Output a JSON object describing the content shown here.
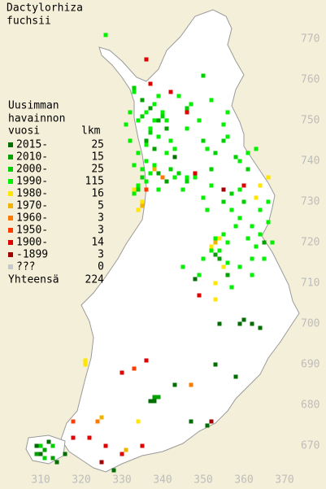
{
  "map": {
    "title_lines": [
      "Dactylorhiza",
      "fuchsii"
    ],
    "legend_header": [
      "Uusimman",
      "havainnon",
      "vuosi"
    ],
    "count_header": "lkm",
    "total_label": "Yhteensä",
    "total": 224,
    "yticks": [
      670,
      680,
      690,
      700,
      710,
      720,
      730,
      740,
      750,
      760,
      770
    ],
    "xticks": [
      310,
      320,
      330,
      340,
      350,
      360,
      370
    ],
    "periods": [
      {
        "label": "2015-",
        "count": 25,
        "color": "#006e00",
        "squares": [
          [
            343,
            741
          ],
          [
            348,
            711
          ],
          [
            354,
            700
          ],
          [
            359,
            700
          ],
          [
            360,
            701
          ],
          [
            362,
            700
          ],
          [
            364,
            699
          ],
          [
            353,
            690
          ],
          [
            358,
            687
          ],
          [
            343,
            685
          ],
          [
            338,
            681
          ],
          [
            337,
            681
          ],
          [
            347,
            676
          ],
          [
            351,
            675
          ],
          [
            331,
            669
          ],
          [
            328,
            664
          ],
          [
            309,
            670
          ],
          [
            310,
            668
          ],
          [
            312,
            671
          ],
          [
            316,
            668
          ],
          [
            314,
            666
          ]
        ]
      },
      {
        "label": "2010-",
        "count": 15,
        "color": "#00a000",
        "squares": [
          [
            335,
            755
          ],
          [
            337,
            753
          ],
          [
            339,
            750
          ],
          [
            341,
            748
          ],
          [
            336,
            745
          ],
          [
            338,
            743
          ],
          [
            339,
            737
          ],
          [
            341,
            735
          ],
          [
            353,
            717
          ],
          [
            354,
            716
          ],
          [
            356,
            712
          ],
          [
            338,
            682
          ],
          [
            339,
            682
          ],
          [
            309,
            668
          ],
          [
            311,
            669
          ],
          [
            313,
            667
          ],
          [
            365,
            720
          ]
        ]
      },
      {
        "label": "2000-",
        "count": 25,
        "color": "#00d000",
        "squares": [
          [
            333,
            758
          ],
          [
            335,
            751
          ],
          [
            340,
            751
          ],
          [
            337,
            747
          ],
          [
            342,
            738
          ],
          [
            335,
            736
          ],
          [
            334,
            733
          ],
          [
            344,
            737
          ],
          [
            346,
            735
          ],
          [
            353,
            742
          ],
          [
            355,
            745
          ],
          [
            358,
            741
          ],
          [
            361,
            738
          ],
          [
            352,
            738
          ],
          [
            350,
            745
          ],
          [
            346,
            753
          ],
          [
            350,
            761
          ],
          [
            355,
            730
          ],
          [
            357,
            732
          ],
          [
            360,
            730
          ],
          [
            310,
            670
          ],
          [
            311,
            667
          ],
          [
            313,
            670
          ]
        ]
      },
      {
        "label": "1990-",
        "count": 115,
        "color": "#00f000",
        "squares": [
          [
            326,
            771
          ],
          [
            333,
            757
          ],
          [
            334,
            750
          ],
          [
            336,
            752
          ],
          [
            338,
            754
          ],
          [
            339,
            756
          ],
          [
            340,
            752
          ],
          [
            341,
            750
          ],
          [
            338,
            750
          ],
          [
            337,
            748
          ],
          [
            336,
            744
          ],
          [
            332,
            752
          ],
          [
            332,
            745
          ],
          [
            331,
            749
          ],
          [
            334,
            742
          ],
          [
            339,
            746
          ],
          [
            342,
            745
          ],
          [
            343,
            743
          ],
          [
            341,
            742
          ],
          [
            338,
            739
          ],
          [
            336,
            740
          ],
          [
            333,
            739
          ],
          [
            335,
            738
          ],
          [
            337,
            737
          ],
          [
            340,
            736
          ],
          [
            343,
            736
          ],
          [
            346,
            736
          ],
          [
            348,
            736
          ],
          [
            345,
            733
          ],
          [
            339,
            733
          ],
          [
            336,
            733
          ],
          [
            333,
            732
          ],
          [
            344,
            756
          ],
          [
            347,
            754
          ],
          [
            349,
            750
          ],
          [
            346,
            748
          ],
          [
            352,
            755
          ],
          [
            356,
            752
          ],
          [
            355,
            749
          ],
          [
            356,
            746
          ],
          [
            351,
            743
          ],
          [
            359,
            740
          ],
          [
            361,
            742
          ],
          [
            363,
            743
          ],
          [
            357,
            728
          ],
          [
            359,
            726
          ],
          [
            362,
            724
          ],
          [
            364,
            722
          ],
          [
            366,
            730
          ],
          [
            366,
            725
          ],
          [
            364,
            728
          ],
          [
            359,
            733
          ],
          [
            358,
            724
          ],
          [
            356,
            720
          ],
          [
            354,
            718
          ],
          [
            356,
            715
          ],
          [
            359,
            714
          ],
          [
            362,
            716
          ],
          [
            363,
            719
          ],
          [
            361,
            721
          ],
          [
            355,
            722
          ],
          [
            352,
            718
          ],
          [
            350,
            716
          ],
          [
            357,
            709
          ],
          [
            349,
            712
          ],
          [
            352,
            734
          ],
          [
            351,
            728
          ],
          [
            350,
            731
          ],
          [
            365,
            716
          ],
          [
            367,
            720
          ],
          [
            362,
            712
          ],
          [
            353,
            721
          ],
          [
            345,
            714
          ],
          [
            334,
            734
          ],
          [
            336,
            735
          ]
        ]
      },
      {
        "label": "1980-",
        "count": 16,
        "color": "#ffe600",
        "squares": [
          [
            352,
            719
          ],
          [
            354,
            721
          ],
          [
            355,
            714
          ],
          [
            353,
            710
          ],
          [
            366,
            736
          ],
          [
            363,
            731
          ],
          [
            364,
            734
          ],
          [
            334,
            728
          ],
          [
            335,
            730
          ],
          [
            321,
            691
          ],
          [
            321,
            690
          ],
          [
            334,
            676
          ],
          [
            353,
            706
          ],
          [
            333,
            733
          ]
        ]
      },
      {
        "label": "1970-",
        "count": 5,
        "color": "#f0b400",
        "squares": [
          [
            338,
            738
          ],
          [
            335,
            729
          ],
          [
            353,
            720
          ],
          [
            331,
            669
          ],
          [
            325,
            677
          ]
        ]
      },
      {
        "label": "1960-",
        "count": 3,
        "color": "#ff7800",
        "squares": [
          [
            340,
            736
          ],
          [
            347,
            685
          ],
          [
            324,
            676
          ]
        ]
      },
      {
        "label": "1950-",
        "count": 3,
        "color": "#ff3c00",
        "squares": [
          [
            336,
            733
          ],
          [
            333,
            689
          ],
          [
            318,
            676
          ]
        ]
      },
      {
        "label": "1900-",
        "count": 14,
        "color": "#dc0000",
        "squares": [
          [
            336,
            765
          ],
          [
            337,
            759
          ],
          [
            342,
            757
          ],
          [
            346,
            752
          ],
          [
            348,
            737
          ],
          [
            360,
            734
          ],
          [
            349,
            707
          ],
          [
            330,
            688
          ],
          [
            336,
            691
          ],
          [
            322,
            672
          ],
          [
            318,
            672
          ],
          [
            326,
            670
          ],
          [
            330,
            668
          ],
          [
            335,
            670
          ]
        ]
      },
      {
        "label": "-1899",
        "count": 3,
        "color": "#a00000",
        "squares": [
          [
            355,
            733
          ],
          [
            325,
            666
          ],
          [
            352,
            676
          ]
        ]
      },
      {
        "label": "???",
        "count": 0,
        "color": "#c8c8c8"
      }
    ]
  }
}
